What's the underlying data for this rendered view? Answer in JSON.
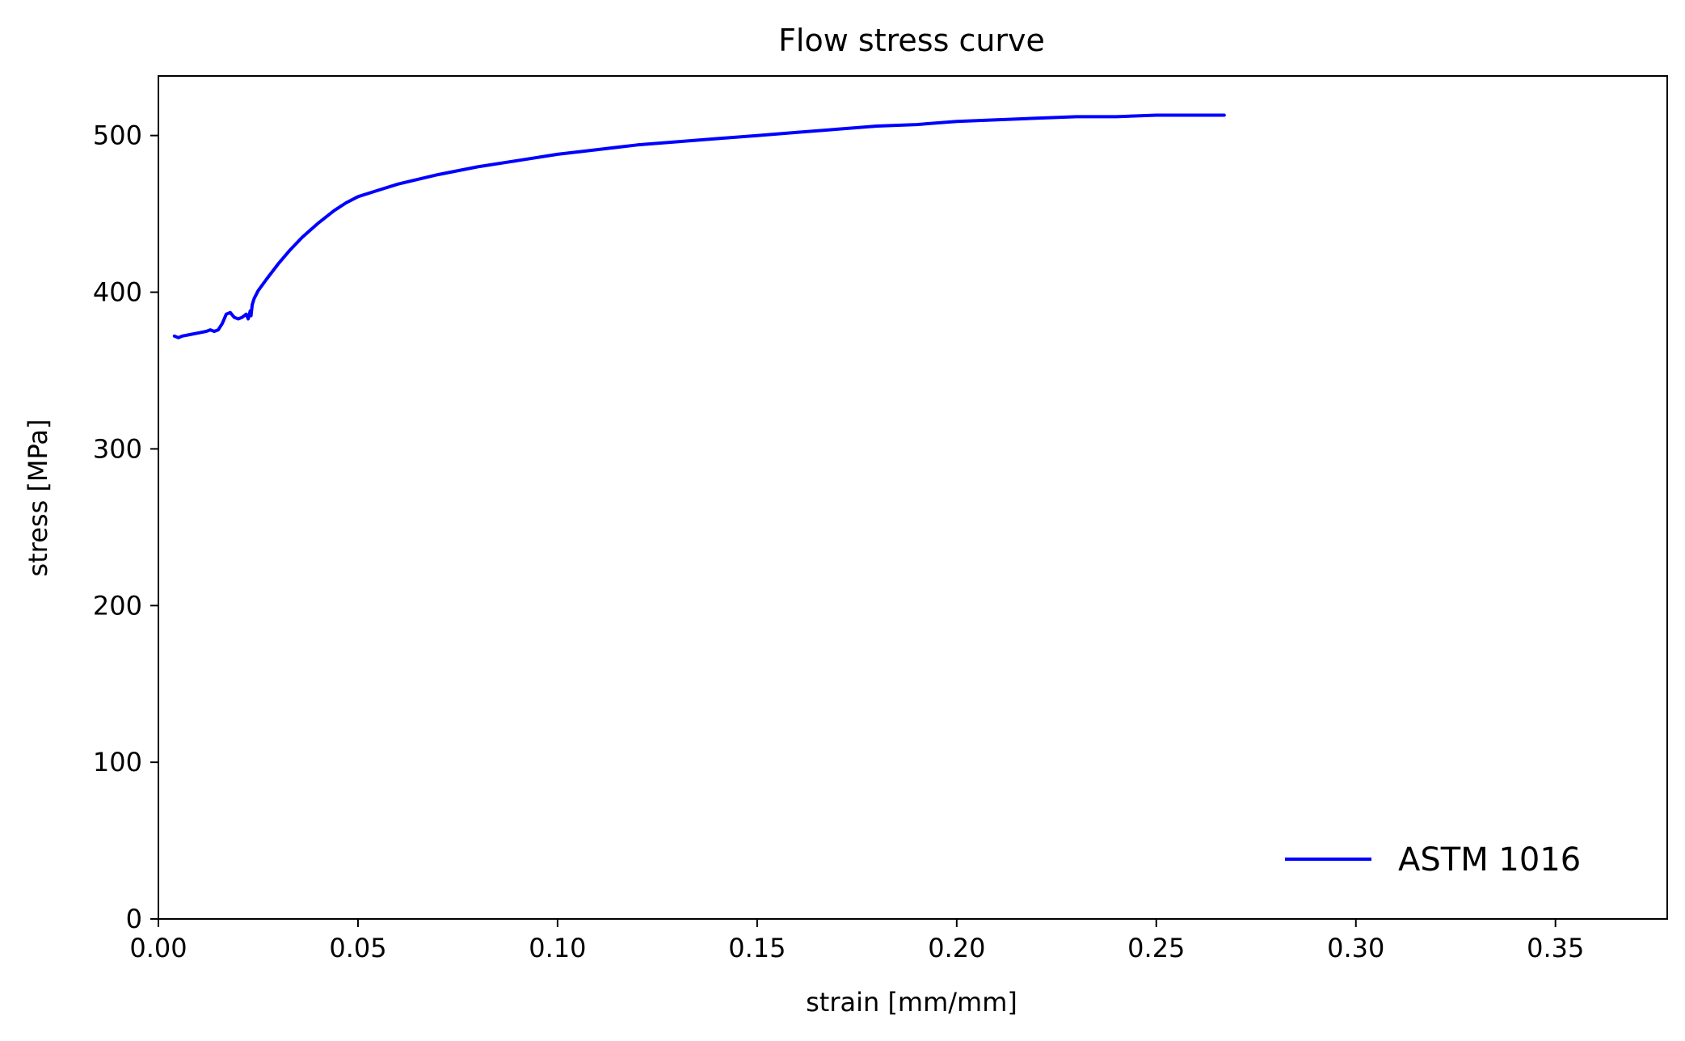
{
  "chart_data": {
    "type": "line",
    "title": "Flow stress curve",
    "xlabel": "strain [mm/mm]",
    "ylabel": "stress [MPa]",
    "xlim": [
      0.0,
      0.378
    ],
    "ylim": [
      0,
      538
    ],
    "xticks": [
      0.0,
      0.05,
      0.1,
      0.15,
      0.2,
      0.25,
      0.3,
      0.35
    ],
    "xtick_labels": [
      "0.00",
      "0.05",
      "0.10",
      "0.15",
      "0.20",
      "0.25",
      "0.30",
      "0.35"
    ],
    "yticks": [
      0,
      100,
      200,
      300,
      400,
      500
    ],
    "ytick_labels": [
      "0",
      "100",
      "200",
      "300",
      "400",
      "500"
    ],
    "grid": false,
    "legend_position": "lower right",
    "series": [
      {
        "name": "ASTM 1016",
        "color": "#0000ff",
        "x": [
          0.004,
          0.005,
          0.006,
          0.008,
          0.01,
          0.012,
          0.013,
          0.014,
          0.015,
          0.016,
          0.017,
          0.018,
          0.019,
          0.02,
          0.021,
          0.022,
          0.0225,
          0.023,
          0.0232,
          0.0235,
          0.024,
          0.025,
          0.027,
          0.03,
          0.033,
          0.036,
          0.04,
          0.044,
          0.047,
          0.05,
          0.055,
          0.06,
          0.07,
          0.08,
          0.09,
          0.1,
          0.11,
          0.12,
          0.13,
          0.14,
          0.15,
          0.16,
          0.17,
          0.18,
          0.19,
          0.2,
          0.21,
          0.22,
          0.23,
          0.24,
          0.25,
          0.26,
          0.267
        ],
        "y": [
          372,
          371,
          372,
          373,
          374,
          375,
          376,
          375,
          376,
          380,
          386,
          387,
          384,
          383,
          384,
          386,
          383,
          388,
          385,
          392,
          396,
          401,
          408,
          418,
          427,
          435,
          444,
          452,
          457,
          461,
          465,
          469,
          475,
          480,
          484,
          488,
          491,
          494,
          496,
          498,
          500,
          502,
          504,
          506,
          507,
          509,
          510,
          511,
          512,
          512,
          513,
          513,
          513
        ]
      }
    ]
  }
}
